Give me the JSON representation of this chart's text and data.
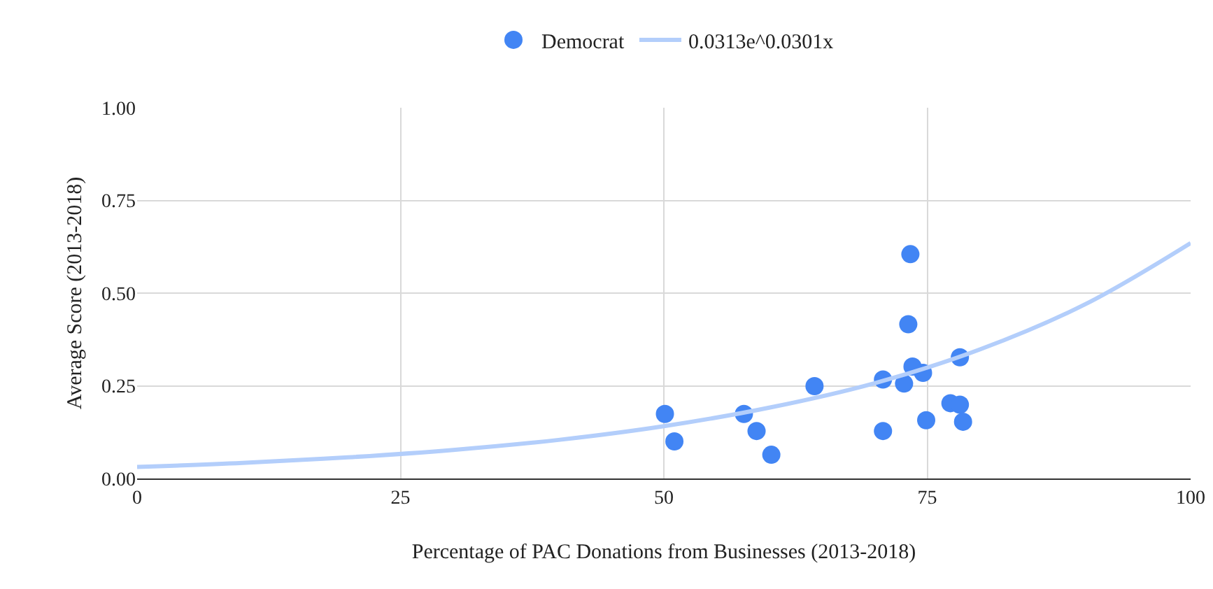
{
  "chart_data": {
    "type": "scatter",
    "xlabel": "Percentage of PAC Donations from Businesses (2013-2018)",
    "ylabel": "Average Score (2013-2018)",
    "xlim": [
      0,
      100
    ],
    "xticks": [
      0,
      25,
      50,
      75,
      100
    ],
    "ylim": [
      0,
      1
    ],
    "yticks": [
      {
        "value": 0,
        "label": "0.00"
      },
      {
        "value": 0.25,
        "label": "0.25"
      },
      {
        "value": 0.5,
        "label": "0.50"
      },
      {
        "value": 0.75,
        "label": "0.75"
      },
      {
        "value": 1,
        "label": "1.00"
      }
    ],
    "grid": true,
    "legend": "top",
    "marker": "circle",
    "series": [
      {
        "name": "Democrat",
        "color": "#4285f4",
        "x": [
          50.1,
          51.0,
          57.6,
          58.8,
          60.2,
          64.3,
          70.8,
          70.8,
          72.8,
          73.4,
          73.2,
          73.6,
          74.6,
          74.9,
          77.2,
          78.1,
          78.1,
          78.4
        ],
        "values": [
          0.174,
          0.1,
          0.174,
          0.128,
          0.064,
          0.249,
          0.267,
          0.128,
          0.256,
          0.605,
          0.416,
          0.302,
          0.285,
          0.157,
          0.203,
          0.199,
          0.327,
          0.153
        ]
      },
      {
        "name": "0.0313e^0.0301x",
        "type": "line",
        "marker": "none",
        "color": "#b3cefb",
        "x": [
          0,
          10,
          20,
          30,
          40,
          50,
          60,
          70,
          80,
          90,
          100
        ],
        "values": [
          0.031,
          0.042,
          0.057,
          0.077,
          0.104,
          0.141,
          0.191,
          0.257,
          0.348,
          0.47,
          0.635
        ]
      }
    ]
  }
}
